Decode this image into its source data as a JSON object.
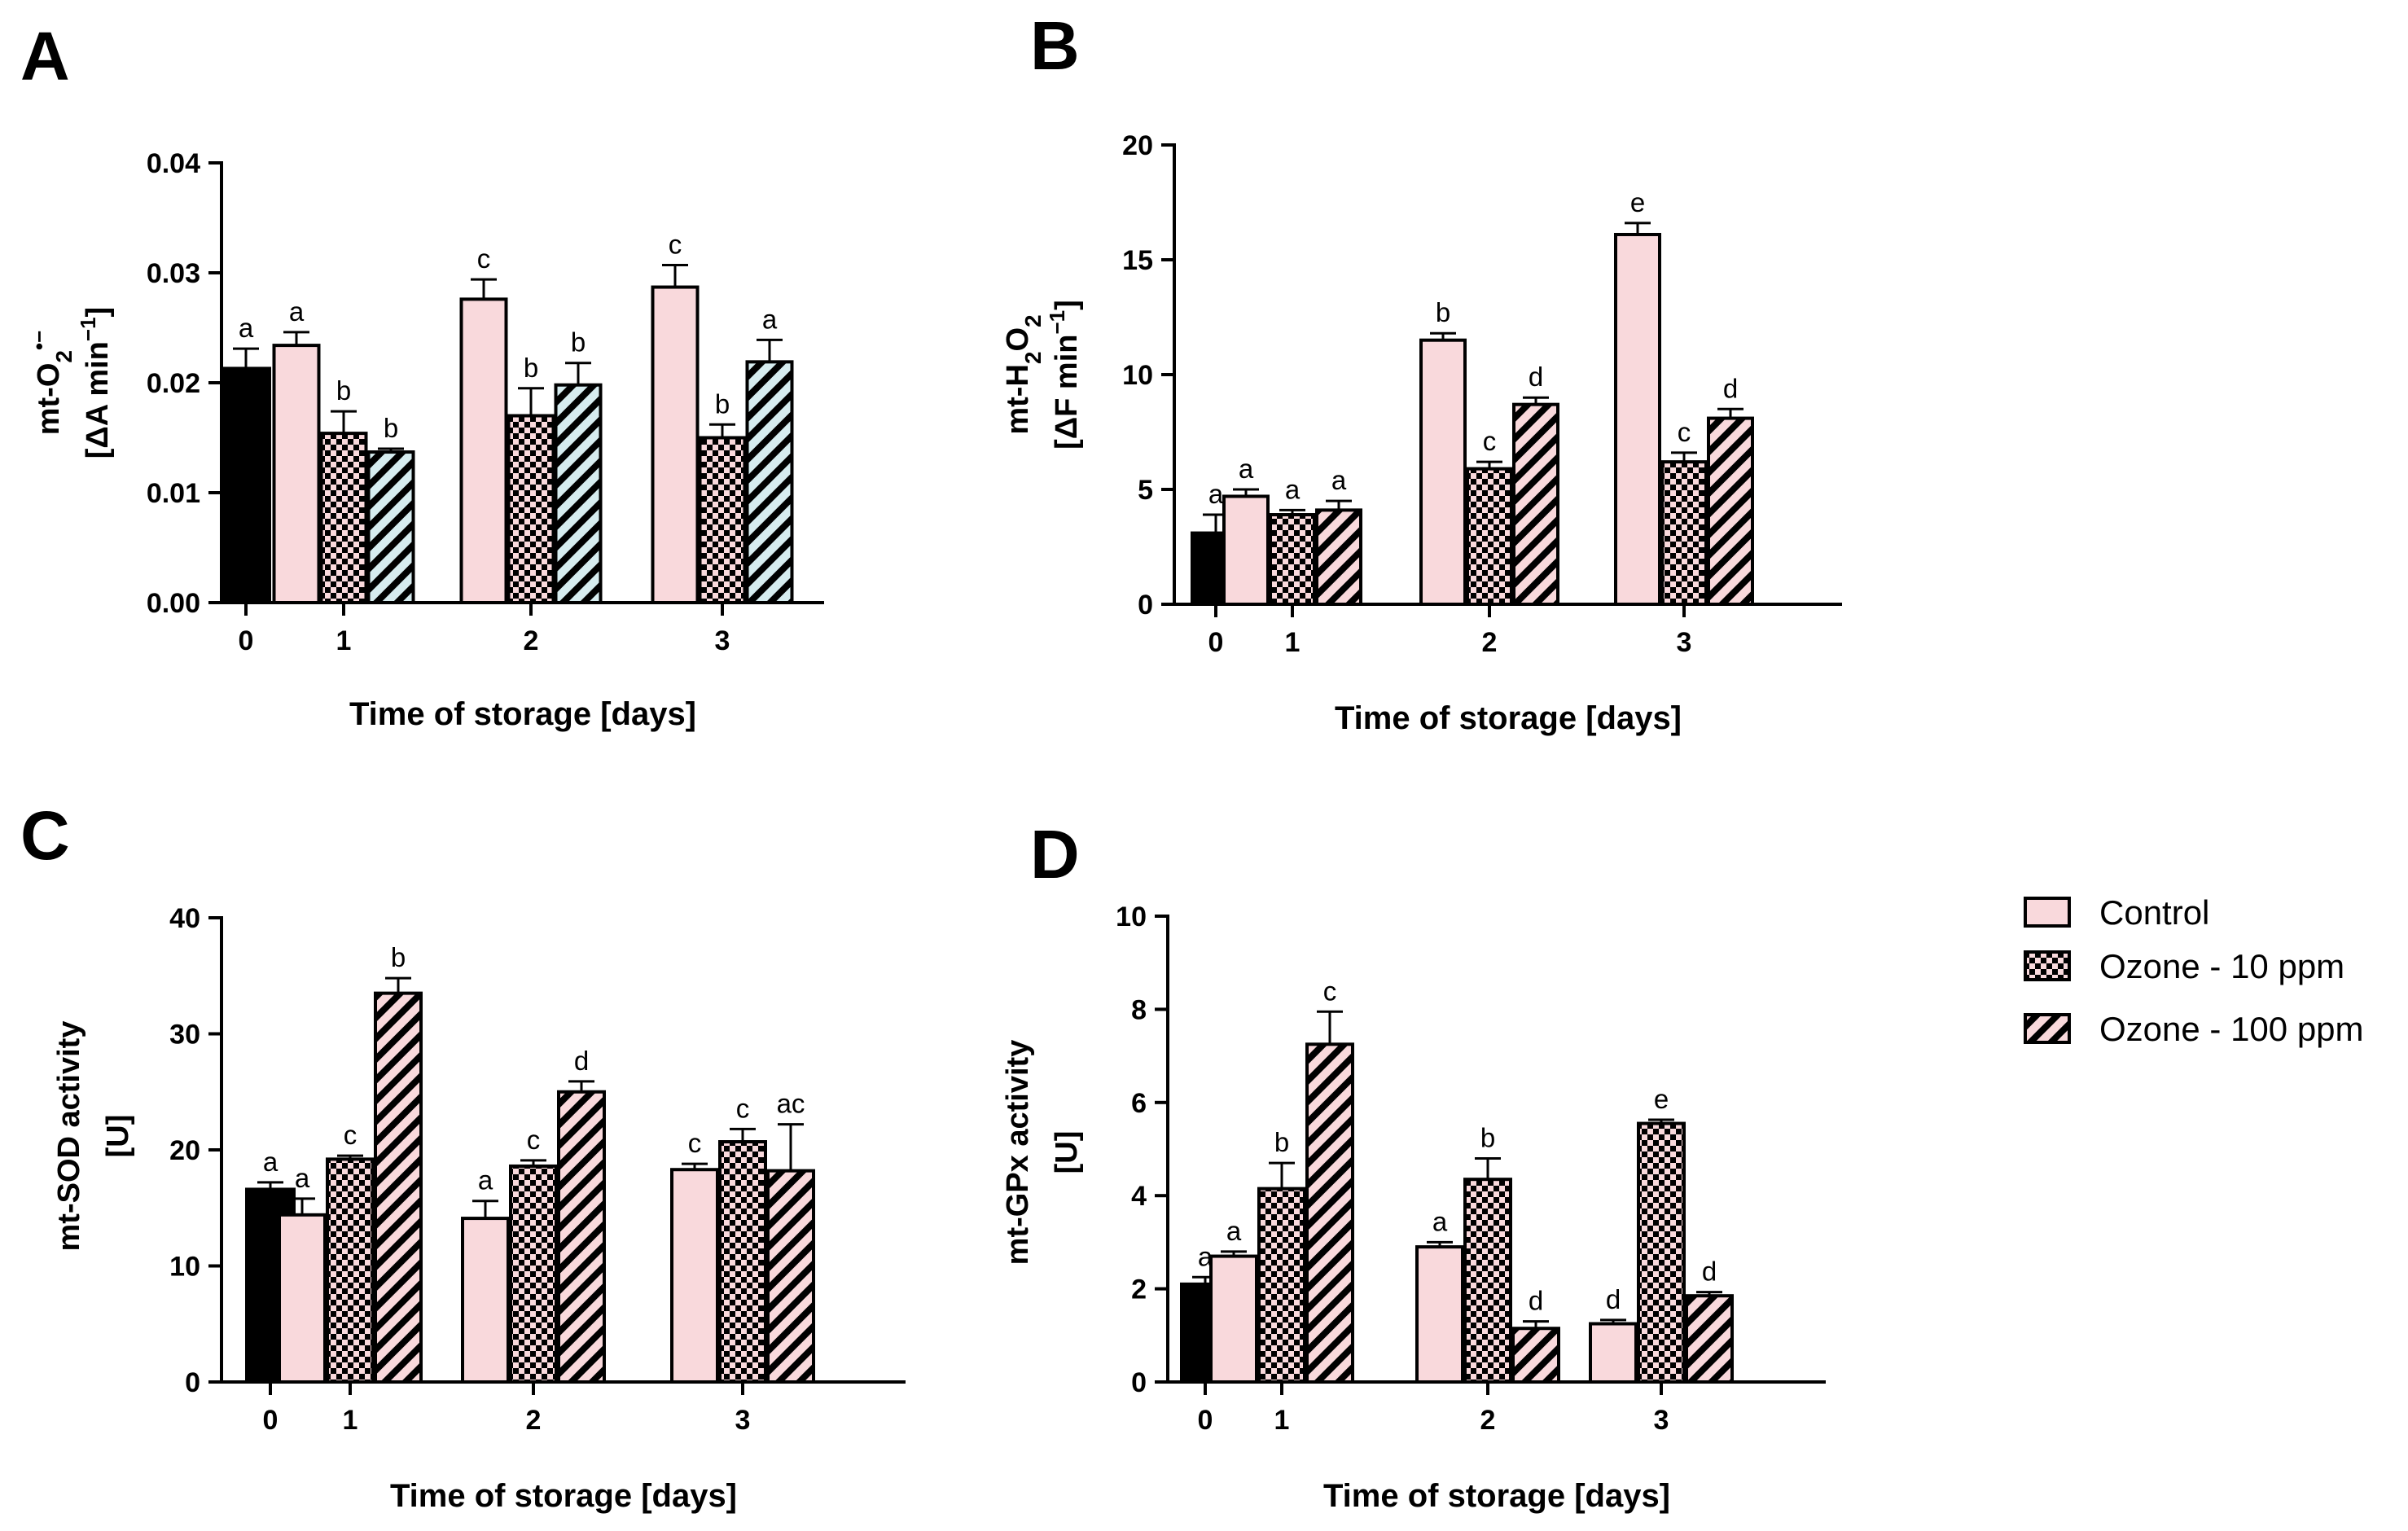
{
  "figure": {
    "legend": [
      {
        "key": "control",
        "label": "Control",
        "fill": "#f9d9dc"
      },
      {
        "key": "oz10",
        "label": "Ozone - 10 ppm",
        "fill": "checker"
      },
      {
        "key": "oz100",
        "label": "Ozone - 100 ppm",
        "fill": "diagonal"
      }
    ],
    "colors": {
      "day0": "#000000",
      "control": "#f9d9dc",
      "pattern_bg": "#f9d9dc",
      "pattern_fg": "#000000",
      "panelA_stripe_bg": "#d6ecef"
    }
  },
  "chart_data": [
    {
      "panel": "A",
      "type": "bar",
      "ylabel_main": "mt-O",
      "ylabel_sub": "2",
      "ylabel_sup": "•−",
      "ylabel_units": "[ΔA min",
      "ylabel_units_sup": "−1",
      "ylabel_units_end": "]",
      "xlabel": "Time of storage [days]",
      "ylim": [
        0,
        0.04
      ],
      "yticks": [
        "0.00",
        "0.01",
        "0.02",
        "0.03",
        "0.04"
      ],
      "categories": [
        "0",
        "1",
        "2",
        "3"
      ],
      "series": [
        {
          "name": "Day 0",
          "values": [
            0.0213,
            null,
            null,
            null
          ],
          "errors": [
            0.0018,
            null,
            null,
            null
          ],
          "letters": [
            "a",
            null,
            null,
            null
          ]
        },
        {
          "name": "Control",
          "values": [
            null,
            0.0234,
            0.0276,
            0.0287
          ],
          "errors": [
            null,
            0.0012,
            0.0018,
            0.002
          ],
          "letters": [
            null,
            "a",
            "c",
            "c"
          ]
        },
        {
          "name": "Ozone - 10 ppm",
          "values": [
            null,
            0.0154,
            0.017,
            0.015
          ],
          "errors": [
            null,
            0.002,
            0.0025,
            0.0012
          ],
          "letters": [
            null,
            "b",
            "b",
            "b"
          ]
        },
        {
          "name": "Ozone - 100 ppm",
          "values": [
            null,
            0.0137,
            0.0198,
            0.0219
          ],
          "errors": [
            null,
            0.0003,
            0.002,
            0.002
          ],
          "letters": [
            null,
            "b",
            "b",
            "a"
          ]
        }
      ]
    },
    {
      "panel": "B",
      "type": "bar",
      "ylabel_main": "mt-H",
      "ylabel_sub": "2",
      "ylabel_mid": "O",
      "ylabel_sub2": "2",
      "ylabel_units": "[ΔF min",
      "ylabel_units_sup": "−1",
      "ylabel_units_end": "]",
      "xlabel": "Time of storage [days]",
      "ylim": [
        0,
        20
      ],
      "yticks": [
        "0",
        "5",
        "10",
        "15",
        "20"
      ],
      "categories": [
        "0",
        "1",
        "2",
        "3"
      ],
      "series": [
        {
          "name": "Day 0",
          "values": [
            3.1,
            null,
            null,
            null
          ],
          "errors": [
            0.8,
            null,
            null,
            null
          ],
          "letters": [
            "a",
            null,
            null,
            null
          ]
        },
        {
          "name": "Control",
          "values": [
            null,
            4.7,
            11.5,
            16.1
          ],
          "errors": [
            null,
            0.3,
            0.3,
            0.5
          ],
          "letters": [
            null,
            "a",
            "b",
            "e"
          ]
        },
        {
          "name": "Ozone - 10 ppm",
          "values": [
            null,
            3.9,
            5.9,
            6.2
          ],
          "errors": [
            null,
            0.2,
            0.3,
            0.4
          ],
          "letters": [
            null,
            "a",
            "c",
            "c"
          ]
        },
        {
          "name": "Ozone - 100 ppm",
          "values": [
            null,
            4.1,
            8.7,
            8.1
          ],
          "errors": [
            null,
            0.4,
            0.3,
            0.4
          ],
          "letters": [
            null,
            "a",
            "d",
            "d"
          ]
        }
      ]
    },
    {
      "panel": "C",
      "type": "bar",
      "ylabel_main": "mt-SOD activity",
      "ylabel_units": "[U]",
      "xlabel": "Time of storage [days]",
      "ylim": [
        0,
        40
      ],
      "yticks": [
        "0",
        "10",
        "20",
        "30",
        "40"
      ],
      "categories": [
        "0",
        "1",
        "2",
        "3"
      ],
      "series": [
        {
          "name": "Day 0",
          "values": [
            16.6,
            null,
            null,
            null
          ],
          "errors": [
            0.6,
            null,
            null,
            null
          ],
          "letters": [
            "a",
            null,
            null,
            null
          ]
        },
        {
          "name": "Control",
          "values": [
            null,
            14.4,
            14.1,
            18.3
          ],
          "errors": [
            null,
            1.4,
            1.5,
            0.5
          ],
          "letters": [
            null,
            "a",
            "a",
            "c"
          ]
        },
        {
          "name": "Ozone - 10 ppm",
          "values": [
            null,
            19.2,
            18.6,
            20.7
          ],
          "errors": [
            null,
            0.3,
            0.5,
            1.1
          ],
          "letters": [
            null,
            "c",
            "c",
            "c"
          ]
        },
        {
          "name": "Ozone - 100 ppm",
          "values": [
            null,
            33.5,
            25.0,
            18.2
          ],
          "errors": [
            null,
            1.3,
            0.9,
            4.0
          ],
          "letters": [
            null,
            "b",
            "d",
            "ac"
          ]
        }
      ]
    },
    {
      "panel": "D",
      "type": "bar",
      "ylabel_main": "mt-GPx activity",
      "ylabel_units": "[U]",
      "xlabel": "Time of storage [days]",
      "ylim": [
        0,
        10
      ],
      "yticks": [
        "0",
        "2",
        "4",
        "6",
        "8",
        "10"
      ],
      "categories": [
        "0",
        "1",
        "2",
        "3"
      ],
      "series": [
        {
          "name": "Day 0",
          "values": [
            2.1,
            null,
            null,
            null
          ],
          "errors": [
            0.15,
            null,
            null,
            null
          ],
          "letters": [
            "a",
            null,
            null,
            null
          ]
        },
        {
          "name": "Control",
          "values": [
            null,
            2.7,
            2.9,
            1.25
          ],
          "errors": [
            null,
            0.1,
            0.1,
            0.08
          ],
          "letters": [
            null,
            "a",
            "a",
            "d"
          ]
        },
        {
          "name": "Ozone - 10 ppm",
          "values": [
            null,
            4.15,
            4.35,
            5.55
          ],
          "errors": [
            null,
            0.55,
            0.45,
            0.08
          ],
          "letters": [
            null,
            "b",
            "b",
            "e"
          ]
        },
        {
          "name": "Ozone - 100 ppm",
          "values": [
            null,
            7.25,
            1.15,
            1.85
          ],
          "errors": [
            null,
            0.7,
            0.15,
            0.08
          ],
          "letters": [
            null,
            "c",
            "d",
            "d"
          ]
        }
      ]
    }
  ]
}
